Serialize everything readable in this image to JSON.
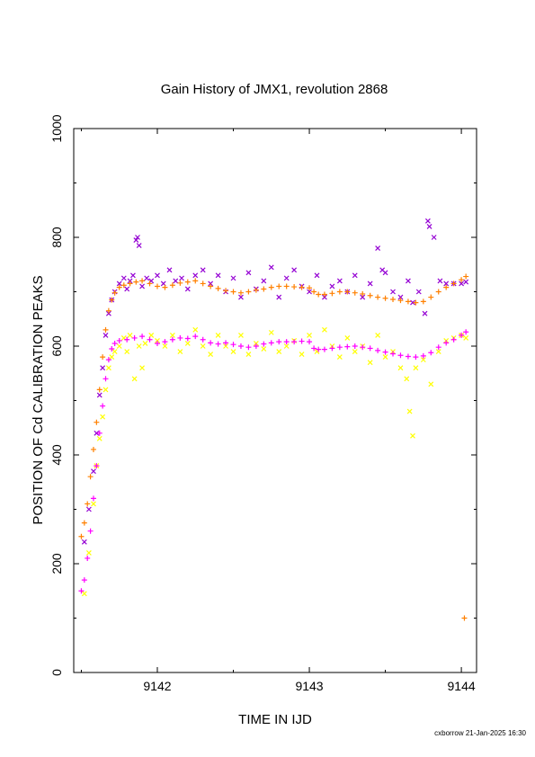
{
  "chart_data": {
    "type": "scatter",
    "title": "Gain History of JMX1, revolution 2868",
    "xlabel": "TIME IN IJD",
    "ylabel": "POSITION OF Cd CALIBRATION PEAKS",
    "xlim": [
      9141.45,
      9144.1
    ],
    "ylim": [
      0,
      1000
    ],
    "xticks": [
      9142,
      9143,
      9144
    ],
    "yticks": [
      0,
      200,
      400,
      600,
      800,
      1000
    ],
    "grid": false,
    "legend": "none",
    "series": [
      {
        "color": "#9400d3",
        "marker": "x",
        "points": [
          [
            9141.52,
            240
          ],
          [
            9141.55,
            300
          ],
          [
            9141.58,
            370
          ],
          [
            9141.6,
            440
          ],
          [
            9141.62,
            510
          ],
          [
            9141.64,
            560
          ],
          [
            9141.66,
            620
          ],
          [
            9141.68,
            660
          ],
          [
            9141.7,
            685
          ],
          [
            9141.72,
            700
          ],
          [
            9141.75,
            715
          ],
          [
            9141.78,
            725
          ],
          [
            9141.8,
            705
          ],
          [
            9141.82,
            720
          ],
          [
            9141.84,
            730
          ],
          [
            9141.86,
            795
          ],
          [
            9141.87,
            800
          ],
          [
            9141.88,
            785
          ],
          [
            9141.9,
            710
          ],
          [
            9141.93,
            725
          ],
          [
            9141.96,
            720
          ],
          [
            9142.0,
            730
          ],
          [
            9142.04,
            715
          ],
          [
            9142.08,
            740
          ],
          [
            9142.12,
            720
          ],
          [
            9142.16,
            725
          ],
          [
            9142.2,
            705
          ],
          [
            9142.25,
            730
          ],
          [
            9142.3,
            740
          ],
          [
            9142.35,
            715
          ],
          [
            9142.4,
            730
          ],
          [
            9142.45,
            700
          ],
          [
            9142.5,
            725
          ],
          [
            9142.55,
            690
          ],
          [
            9142.6,
            735
          ],
          [
            9142.65,
            705
          ],
          [
            9142.7,
            720
          ],
          [
            9142.75,
            745
          ],
          [
            9142.8,
            690
          ],
          [
            9142.85,
            725
          ],
          [
            9142.9,
            740
          ],
          [
            9142.95,
            710
          ],
          [
            9143.0,
            700
          ],
          [
            9143.05,
            730
          ],
          [
            9143.1,
            690
          ],
          [
            9143.15,
            710
          ],
          [
            9143.2,
            720
          ],
          [
            9143.25,
            700
          ],
          [
            9143.3,
            730
          ],
          [
            9143.35,
            690
          ],
          [
            9143.4,
            715
          ],
          [
            9143.45,
            780
          ],
          [
            9143.48,
            740
          ],
          [
            9143.5,
            735
          ],
          [
            9143.55,
            700
          ],
          [
            9143.6,
            690
          ],
          [
            9143.65,
            720
          ],
          [
            9143.68,
            680
          ],
          [
            9143.72,
            700
          ],
          [
            9143.76,
            660
          ],
          [
            9143.78,
            830
          ],
          [
            9143.79,
            820
          ],
          [
            9143.82,
            800
          ],
          [
            9143.86,
            720
          ],
          [
            9143.9,
            715
          ],
          [
            9143.95,
            715
          ],
          [
            9144.0,
            715
          ],
          [
            9144.03,
            718
          ]
        ]
      },
      {
        "color": "#ffff00",
        "marker": "x",
        "points": [
          [
            9141.52,
            145
          ],
          [
            9141.55,
            220
          ],
          [
            9141.58,
            310
          ],
          [
            9141.6,
            380
          ],
          [
            9141.62,
            430
          ],
          [
            9141.64,
            470
          ],
          [
            9141.66,
            520
          ],
          [
            9141.68,
            560
          ],
          [
            9141.7,
            580
          ],
          [
            9141.72,
            590
          ],
          [
            9141.75,
            600
          ],
          [
            9141.78,
            615
          ],
          [
            9141.8,
            590
          ],
          [
            9141.82,
            620
          ],
          [
            9141.85,
            540
          ],
          [
            9141.88,
            600
          ],
          [
            9141.9,
            560
          ],
          [
            9141.92,
            605
          ],
          [
            9141.96,
            620
          ],
          [
            9142.0,
            610
          ],
          [
            9142.05,
            600
          ],
          [
            9142.1,
            620
          ],
          [
            9142.15,
            590
          ],
          [
            9142.2,
            605
          ],
          [
            9142.25,
            630
          ],
          [
            9142.3,
            600
          ],
          [
            9142.35,
            585
          ],
          [
            9142.4,
            620
          ],
          [
            9142.45,
            600
          ],
          [
            9142.5,
            590
          ],
          [
            9142.55,
            620
          ],
          [
            9142.6,
            585
          ],
          [
            9142.65,
            605
          ],
          [
            9142.7,
            595
          ],
          [
            9142.75,
            625
          ],
          [
            9142.8,
            590
          ],
          [
            9142.85,
            600
          ],
          [
            9142.9,
            610
          ],
          [
            9142.95,
            585
          ],
          [
            9143.0,
            620
          ],
          [
            9143.05,
            590
          ],
          [
            9143.1,
            630
          ],
          [
            9143.15,
            600
          ],
          [
            9143.2,
            580
          ],
          [
            9143.25,
            615
          ],
          [
            9143.3,
            590
          ],
          [
            9143.35,
            600
          ],
          [
            9143.4,
            570
          ],
          [
            9143.45,
            620
          ],
          [
            9143.5,
            580
          ],
          [
            9143.55,
            590
          ],
          [
            9143.6,
            560
          ],
          [
            9143.64,
            540
          ],
          [
            9143.66,
            480
          ],
          [
            9143.68,
            435
          ],
          [
            9143.7,
            560
          ],
          [
            9143.75,
            575
          ],
          [
            9143.8,
            530
          ],
          [
            9143.85,
            590
          ],
          [
            9143.9,
            610
          ],
          [
            9143.95,
            615
          ],
          [
            9144.0,
            620
          ],
          [
            9144.03,
            615
          ]
        ]
      },
      {
        "color": "#ff8000",
        "marker": "+",
        "points": [
          [
            9141.5,
            250
          ],
          [
            9141.52,
            275
          ],
          [
            9141.54,
            310
          ],
          [
            9141.56,
            360
          ],
          [
            9141.58,
            410
          ],
          [
            9141.6,
            460
          ],
          [
            9141.62,
            520
          ],
          [
            9141.64,
            580
          ],
          [
            9141.66,
            630
          ],
          [
            9141.68,
            665
          ],
          [
            9141.7,
            685
          ],
          [
            9141.72,
            698
          ],
          [
            9141.75,
            708
          ],
          [
            9141.78,
            712
          ],
          [
            9141.82,
            715
          ],
          [
            9141.86,
            718
          ],
          [
            9141.9,
            720
          ],
          [
            9141.95,
            715
          ],
          [
            9142.0,
            710
          ],
          [
            9142.05,
            708
          ],
          [
            9142.1,
            712
          ],
          [
            9142.15,
            716
          ],
          [
            9142.2,
            718
          ],
          [
            9142.25,
            720
          ],
          [
            9142.3,
            715
          ],
          [
            9142.35,
            710
          ],
          [
            9142.4,
            706
          ],
          [
            9142.45,
            702
          ],
          [
            9142.5,
            700
          ],
          [
            9142.55,
            698
          ],
          [
            9142.6,
            700
          ],
          [
            9142.65,
            703
          ],
          [
            9142.7,
            705
          ],
          [
            9142.75,
            708
          ],
          [
            9142.8,
            710
          ],
          [
            9142.85,
            710
          ],
          [
            9142.9,
            709
          ],
          [
            9142.95,
            708
          ],
          [
            9143.0,
            707
          ],
          [
            9143.03,
            700
          ],
          [
            9143.06,
            695
          ],
          [
            9143.1,
            695
          ],
          [
            9143.15,
            697
          ],
          [
            9143.2,
            700
          ],
          [
            9143.25,
            700
          ],
          [
            9143.3,
            698
          ],
          [
            9143.35,
            696
          ],
          [
            9143.4,
            693
          ],
          [
            9143.45,
            690
          ],
          [
            9143.5,
            688
          ],
          [
            9143.55,
            686
          ],
          [
            9143.6,
            684
          ],
          [
            9143.65,
            682
          ],
          [
            9143.7,
            680
          ],
          [
            9143.75,
            682
          ],
          [
            9143.8,
            690
          ],
          [
            9143.85,
            700
          ],
          [
            9143.9,
            708
          ],
          [
            9143.95,
            715
          ],
          [
            9144.0,
            722
          ],
          [
            9144.03,
            728
          ],
          [
            9144.02,
            100
          ]
        ]
      },
      {
        "color": "#ff00ff",
        "marker": "+",
        "points": [
          [
            9141.5,
            150
          ],
          [
            9141.52,
            170
          ],
          [
            9141.54,
            210
          ],
          [
            9141.56,
            260
          ],
          [
            9141.58,
            320
          ],
          [
            9141.6,
            380
          ],
          [
            9141.62,
            440
          ],
          [
            9141.64,
            490
          ],
          [
            9141.66,
            540
          ],
          [
            9141.68,
            575
          ],
          [
            9141.7,
            595
          ],
          [
            9141.72,
            605
          ],
          [
            9141.75,
            610
          ],
          [
            9141.8,
            612
          ],
          [
            9141.85,
            615
          ],
          [
            9141.9,
            618
          ],
          [
            9141.95,
            612
          ],
          [
            9142.0,
            605
          ],
          [
            9142.05,
            608
          ],
          [
            9142.1,
            612
          ],
          [
            9142.15,
            615
          ],
          [
            9142.2,
            614
          ],
          [
            9142.25,
            618
          ],
          [
            9142.3,
            612
          ],
          [
            9142.35,
            606
          ],
          [
            9142.4,
            604
          ],
          [
            9142.45,
            606
          ],
          [
            9142.5,
            603
          ],
          [
            9142.55,
            600
          ],
          [
            9142.6,
            598
          ],
          [
            9142.65,
            600
          ],
          [
            9142.7,
            604
          ],
          [
            9142.75,
            606
          ],
          [
            9142.8,
            608
          ],
          [
            9142.85,
            608
          ],
          [
            9142.9,
            608
          ],
          [
            9142.95,
            609
          ],
          [
            9143.0,
            608
          ],
          [
            9143.03,
            596
          ],
          [
            9143.06,
            594
          ],
          [
            9143.1,
            594
          ],
          [
            9143.15,
            596
          ],
          [
            9143.2,
            598
          ],
          [
            9143.25,
            599
          ],
          [
            9143.3,
            600
          ],
          [
            9143.35,
            598
          ],
          [
            9143.4,
            596
          ],
          [
            9143.45,
            592
          ],
          [
            9143.5,
            589
          ],
          [
            9143.55,
            586
          ],
          [
            9143.6,
            583
          ],
          [
            9143.65,
            581
          ],
          [
            9143.7,
            580
          ],
          [
            9143.75,
            582
          ],
          [
            9143.8,
            588
          ],
          [
            9143.85,
            598
          ],
          [
            9143.9,
            606
          ],
          [
            9143.95,
            612
          ],
          [
            9144.0,
            620
          ],
          [
            9144.03,
            626
          ]
        ]
      }
    ]
  },
  "footer": "cxborrow 21-Jan-2025 16:30"
}
